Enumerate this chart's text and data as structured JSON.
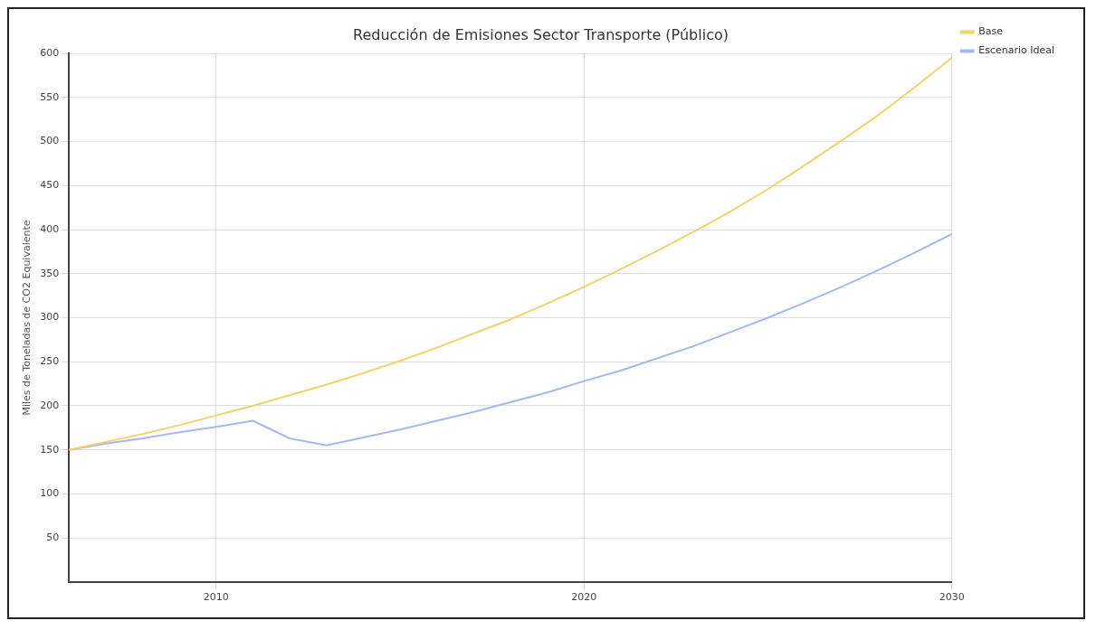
{
  "chart_data": {
    "type": "line",
    "title": "Reducción de Emisiones Sector Transporte (Público)",
    "ylabel": "Miles de Toneladas de CO2 Equivalente",
    "x": [
      2006,
      2007,
      2008,
      2009,
      2010,
      2011,
      2012,
      2013,
      2014,
      2015,
      2016,
      2017,
      2018,
      2019,
      2020,
      2021,
      2022,
      2023,
      2024,
      2025,
      2026,
      2027,
      2028,
      2029,
      2030
    ],
    "series": [
      {
        "name": "Base",
        "color": "#f2d36b",
        "values": [
          150,
          159,
          168,
          178,
          189,
          200,
          212,
          224,
          237,
          251,
          266,
          282,
          298,
          316,
          335,
          355,
          376,
          398,
          421,
          446,
          473,
          501,
          530,
          562,
          595
        ]
      },
      {
        "name": "Escenario Ideal",
        "color": "#a9b5f5",
        "values": [
          150,
          157,
          163,
          170,
          176,
          183,
          163,
          155,
          164,
          173,
          183,
          193,
          204,
          215,
          228,
          240,
          254,
          268,
          284,
          300,
          317,
          335,
          354,
          374,
          395
        ]
      }
    ],
    "xlim": [
      2006,
      2030
    ],
    "xticks": [
      2010,
      2020,
      2030
    ],
    "ylim": [
      0,
      600
    ],
    "yticks": [
      50,
      100,
      150,
      200,
      250,
      300,
      350,
      400,
      450,
      500,
      550,
      600
    ],
    "grid": true,
    "legend": "top right",
    "marker": "none",
    "line_style": "solid"
  }
}
